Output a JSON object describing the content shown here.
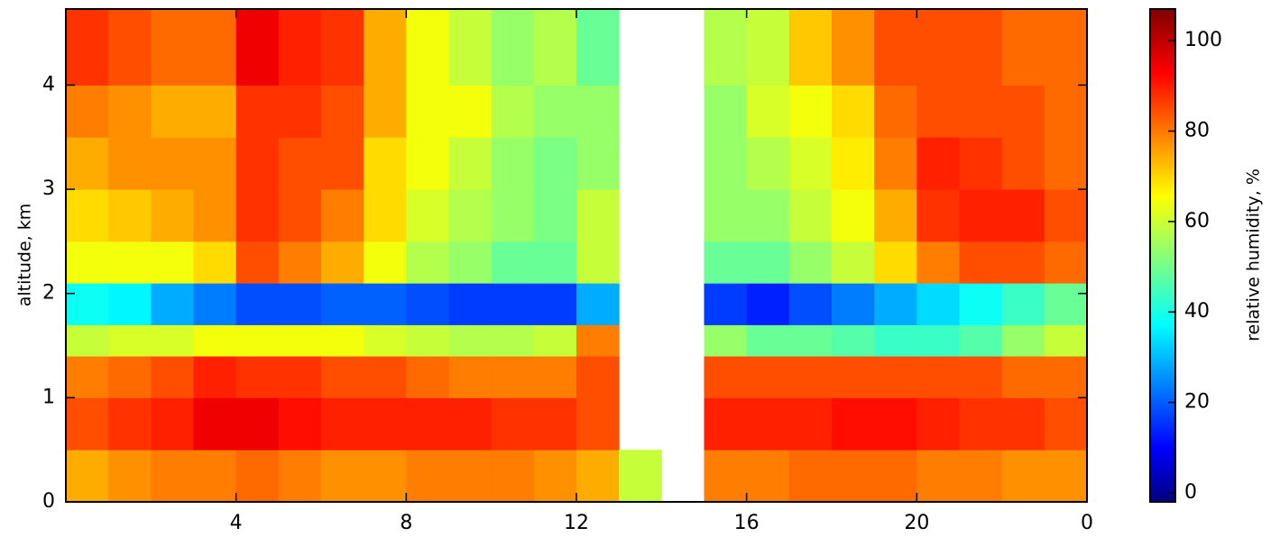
{
  "chart_data": {
    "type": "heatmap",
    "xlabel": null,
    "ylabel": "altitude, km",
    "colorbar_label": "relative humidity, %",
    "x_edges": [
      0,
      1,
      2,
      3,
      4,
      5,
      6,
      7,
      8,
      9,
      10,
      11,
      12,
      13,
      14,
      15,
      16,
      17,
      18,
      19,
      20,
      21,
      22,
      23,
      24
    ],
    "y_edges": [
      0,
      0.5,
      1,
      1.4,
      1.7,
      2.1,
      2.5,
      3,
      3.5,
      4,
      4.73
    ],
    "z": [
      [
        75,
        78,
        80,
        80,
        82,
        80,
        78,
        78,
        80,
        80,
        80,
        78,
        75,
        60,
        null,
        80,
        80,
        82,
        82,
        82,
        80,
        80,
        78,
        78
      ],
      [
        85,
        88,
        90,
        95,
        95,
        92,
        90,
        90,
        90,
        90,
        88,
        88,
        85,
        null,
        null,
        90,
        90,
        90,
        92,
        92,
        90,
        88,
        88,
        85
      ],
      [
        80,
        82,
        85,
        90,
        88,
        88,
        85,
        85,
        82,
        80,
        80,
        80,
        85,
        null,
        null,
        85,
        85,
        85,
        85,
        85,
        85,
        85,
        82,
        82
      ],
      [
        60,
        62,
        62,
        65,
        65,
        65,
        65,
        62,
        60,
        58,
        58,
        60,
        80,
        null,
        null,
        55,
        50,
        50,
        48,
        45,
        45,
        48,
        55,
        60
      ],
      [
        40,
        38,
        30,
        25,
        20,
        20,
        22,
        22,
        20,
        18,
        18,
        18,
        30,
        null,
        null,
        18,
        15,
        20,
        25,
        30,
        35,
        40,
        45,
        50
      ],
      [
        65,
        65,
        65,
        70,
        85,
        80,
        75,
        65,
        58,
        55,
        50,
        50,
        60,
        null,
        null,
        50,
        50,
        55,
        60,
        70,
        80,
        85,
        85,
        82
      ],
      [
        70,
        72,
        75,
        78,
        88,
        85,
        80,
        70,
        62,
        58,
        55,
        52,
        60,
        null,
        null,
        55,
        55,
        60,
        65,
        75,
        88,
        90,
        90,
        85
      ],
      [
        75,
        78,
        78,
        78,
        88,
        85,
        85,
        70,
        65,
        60,
        55,
        52,
        55,
        null,
        null,
        55,
        58,
        62,
        68,
        80,
        90,
        88,
        85,
        82
      ],
      [
        80,
        78,
        75,
        75,
        88,
        88,
        85,
        75,
        65,
        65,
        58,
        55,
        55,
        null,
        null,
        55,
        62,
        65,
        70,
        82,
        85,
        85,
        85,
        82
      ],
      [
        88,
        85,
        82,
        82,
        95,
        90,
        88,
        75,
        65,
        60,
        55,
        58,
        50,
        null,
        null,
        58,
        60,
        72,
        78,
        85,
        85,
        85,
        82,
        82
      ]
    ],
    "xlim": [
      0,
      24
    ],
    "xticks": [
      4,
      8,
      12,
      16,
      20,
      {
        "value": 24,
        "label": "0"
      }
    ],
    "ylim": [
      0,
      4.73
    ],
    "yticks": [
      0,
      1,
      2,
      3,
      4
    ],
    "zlim": [
      -2,
      107
    ],
    "zticks": [
      0,
      20,
      40,
      60,
      80,
      100
    ],
    "colormap": "jet"
  }
}
